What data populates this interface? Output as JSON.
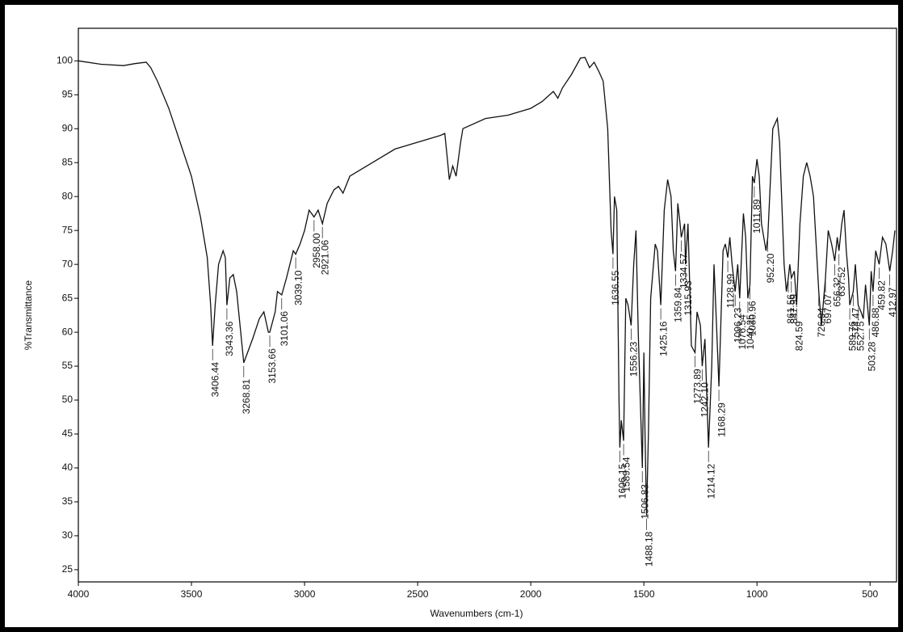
{
  "chart_data": {
    "type": "line",
    "xlabel": "Wavenumbers (cm-1)",
    "ylabel": "%Transmittance",
    "color": "#111111",
    "xlim": [
      4000,
      383
    ],
    "ylim": [
      23.2,
      104.8
    ],
    "xticks": [
      4000,
      3500,
      3000,
      2500,
      2000,
      1500,
      1000,
      500
    ],
    "yticks": [
      25,
      30,
      35,
      40,
      45,
      50,
      55,
      60,
      65,
      70,
      75,
      80,
      85,
      90,
      95,
      100
    ],
    "x": [
      4000,
      3900,
      3800,
      3750,
      3700,
      3680,
      3650,
      3600,
      3550,
      3500,
      3460,
      3430,
      3415,
      3406.44,
      3395,
      3380,
      3360,
      3350,
      3343.36,
      3330,
      3315,
      3300,
      3268.81,
      3230,
      3200,
      3180,
      3160,
      3153.66,
      3130,
      3120,
      3101.06,
      3080,
      3050,
      3039.1,
      3020,
      3000,
      2980,
      2958,
      2940,
      2921.06,
      2900,
      2870,
      2850,
      2830,
      2800,
      2700,
      2600,
      2500,
      2400,
      2380,
      2370,
      2360,
      2345,
      2330,
      2310,
      2300,
      2200,
      2100,
      2000,
      1950,
      1900,
      1880,
      1860,
      1820,
      1780,
      1760,
      1740,
      1720,
      1700,
      1680,
      1660,
      1650,
      1645,
      1636.55,
      1630,
      1620,
      1610,
      1606.15,
      1600,
      1589.54,
      1580,
      1570,
      1556.23,
      1545,
      1535,
      1525,
      1506.83,
      1500,
      1495,
      1488.18,
      1480,
      1470,
      1450,
      1440,
      1425.16,
      1410,
      1395,
      1380,
      1370,
      1359.84,
      1350,
      1340,
      1334.57,
      1320,
      1315.93,
      1305,
      1290,
      1273.89,
      1265,
      1250,
      1242.1,
      1230,
      1214.12,
      1200,
      1190,
      1180,
      1168.29,
      1150,
      1140,
      1128.99,
      1120,
      1110,
      1096.23,
      1085,
      1076.54,
      1060,
      1050,
      1040.25,
      1030.96,
      1020,
      1011.89,
      1000,
      990,
      980,
      960,
      952.2,
      930,
      910,
      900,
      880,
      870,
      861.56,
      855,
      847.99,
      835,
      824.59,
      810,
      795,
      780,
      765,
      750,
      740,
      726.94,
      715,
      697.07,
      685,
      670,
      656.32,
      645,
      637.52,
      625,
      615,
      605,
      595,
      589.76,
      574.47,
      565,
      552.75,
      540,
      530,
      520,
      503.28,
      495,
      486.88,
      475,
      459.82,
      445,
      430,
      412.97,
      400,
      390
    ],
    "values": [
      100,
      99.5,
      99.3,
      99.6,
      99.8,
      99,
      97,
      93,
      88,
      83,
      77,
      71,
      64,
      58,
      64,
      70,
      72,
      71,
      64,
      68,
      68.5,
      66,
      55.5,
      59,
      62,
      63,
      60,
      60,
      63,
      66,
      65.5,
      68,
      72,
      71.5,
      73,
      75,
      78,
      77,
      78,
      76,
      79,
      81,
      81.5,
      80.5,
      83,
      85,
      87,
      88,
      89,
      89.3,
      86,
      82.5,
      84.5,
      83,
      88,
      90,
      91.5,
      92,
      93,
      94,
      95.5,
      94.5,
      96,
      98,
      100.4,
      100.5,
      99,
      99.8,
      98.5,
      97,
      90,
      80,
      75,
      71.5,
      80,
      78,
      50,
      43,
      47,
      44,
      65,
      64,
      61,
      70,
      75,
      60,
      40,
      57,
      45,
      33,
      45,
      65,
      73,
      72,
      64,
      78,
      82.5,
      80,
      72,
      69,
      79,
      76,
      74,
      76,
      70,
      76,
      58,
      57,
      63,
      61,
      55,
      59,
      43,
      55,
      70,
      62,
      52,
      72,
      73,
      71,
      74,
      70,
      66,
      70,
      65,
      77.5,
      74,
      65,
      67,
      83,
      82,
      85.5,
      83,
      76,
      72,
      74,
      90,
      91.5,
      88,
      70,
      66,
      68,
      70,
      68,
      69,
      64,
      76,
      83,
      85,
      83,
      80,
      74,
      66,
      61,
      68,
      75,
      73,
      70.5,
      74,
      72,
      76,
      78,
      72,
      68,
      64,
      66,
      70,
      64,
      63,
      62,
      67,
      61,
      69,
      66,
      72,
      70,
      74,
      73,
      69,
      72,
      75
    ],
    "peaks": {
      "x": [
        3406.44,
        3343.36,
        3268.81,
        3153.66,
        3101.06,
        3039.1,
        2958,
        2921.06,
        1636.55,
        1606.15,
        1589.54,
        1556.23,
        1506.83,
        1488.18,
        1425.16,
        1359.84,
        1334.57,
        1315.93,
        1273.89,
        1242.1,
        1214.12,
        1168.29,
        1128.99,
        1096.23,
        1076.54,
        1040.25,
        1030.96,
        1011.89,
        952.2,
        861.56,
        847.99,
        824.59,
        726.94,
        697.07,
        656.32,
        637.52,
        589.76,
        574.47,
        552.75,
        503.28,
        486.88,
        459.82,
        412.97
      ],
      "labels": [
        "3406.44",
        "3343.36",
        "3268.81",
        "3153.66",
        "3101.06",
        "3039.10",
        "2958.00",
        "2921.06",
        "1636.55",
        "1606.15",
        "1589.54",
        "1556.23",
        "1506.83",
        "1488.18",
        "1425.16",
        "1359.84",
        "1334.57",
        "1315.93",
        "1273.89",
        "1242.10",
        "1214.12",
        "1168.29",
        "1128.99",
        "1096.23",
        "1076.54",
        "1040.25",
        "1030.96",
        "1011.89",
        "952.20",
        "861.56",
        "847.99",
        "824.59",
        "726.94",
        "697.07",
        "656.32",
        "637.52",
        "589.76",
        "574.47",
        "552.75",
        "503.28",
        "486.88",
        "459.82",
        "412.97"
      ]
    }
  }
}
